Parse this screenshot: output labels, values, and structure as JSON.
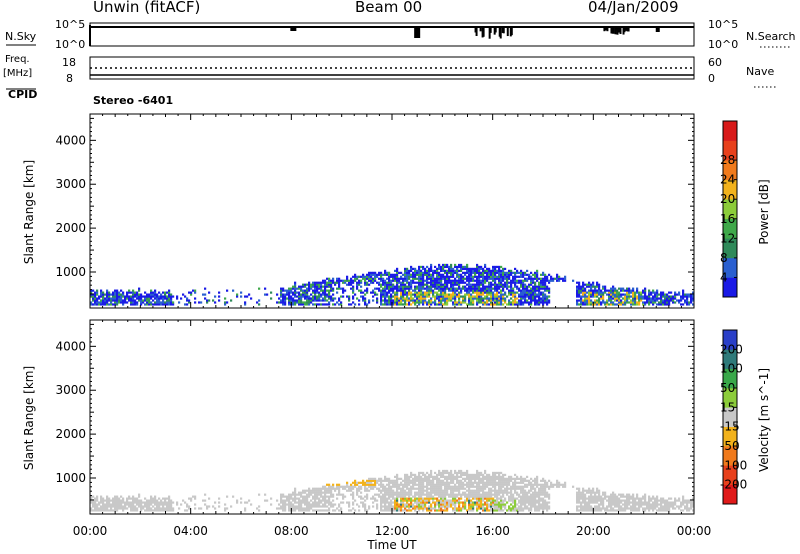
{
  "header": {
    "station": "Unwin (fitACF)",
    "beam": "Beam 00",
    "date": "04/Jan/2009"
  },
  "panels": {
    "nsky_label": "N.Sky",
    "nsky_ticks": [
      "10^5",
      "10^0"
    ],
    "nsearch_label": "N.Search",
    "nsearch_ticks": [
      "10^5",
      "10^0"
    ],
    "freq_label": "Freq.",
    "freq_unit": "[MHz]",
    "freq_ticks": [
      "18",
      "8"
    ],
    "nave_label": "Nave",
    "nave_ticks": [
      "60",
      "0"
    ],
    "cpid_label": "CPID",
    "cpid_value": "Stereo -6401"
  },
  "colors": {
    "power_scale": [
      "#1a1ae6",
      "#2a5fd0",
      "#2f8a5a",
      "#3fa84a",
      "#8ccc3a",
      "#f2b21c",
      "#f07a1c",
      "#e8401c",
      "#d81a1a"
    ],
    "velocity_scale": [
      "#2a3fc8",
      "#2f7a7a",
      "#3aa84a",
      "#8ccc3a",
      "#c8c8c8",
      "#f2b21c",
      "#f07a1c",
      "#e8401c",
      "#e01a1a"
    ],
    "ground_scatter": "#c8c8c8"
  },
  "chart_data": [
    {
      "type": "heatmap",
      "name": "power",
      "ylabel": "Slant Range [km]",
      "yticks": [
        "1000",
        "2000",
        "3000",
        "4000"
      ],
      "ylim": [
        180,
        4600
      ],
      "xticks": [
        "00:00",
        "04:00",
        "08:00",
        "12:00",
        "16:00",
        "20:00",
        "00:00"
      ],
      "colorbar_label": "Power [dB]",
      "colorbar_ticks": [
        "4",
        "8",
        "12",
        "16",
        "20",
        "24",
        "28"
      ],
      "colorbar_range": [
        0,
        32
      ]
    },
    {
      "type": "heatmap",
      "name": "velocity",
      "ylabel": "Slant Range [km]",
      "yticks": [
        "1000",
        "2000",
        "3000",
        "4000"
      ],
      "ylim": [
        180,
        4600
      ],
      "xlabel": "Time UT",
      "xticks": [
        "00:00",
        "04:00",
        "08:00",
        "12:00",
        "16:00",
        "20:00",
        "00:00"
      ],
      "colorbar_label": "Velocity [m s^-1]",
      "colorbar_ticks": [
        "200",
        "100",
        "50",
        "15",
        "-15",
        "-50",
        "-100",
        "-200"
      ]
    }
  ]
}
